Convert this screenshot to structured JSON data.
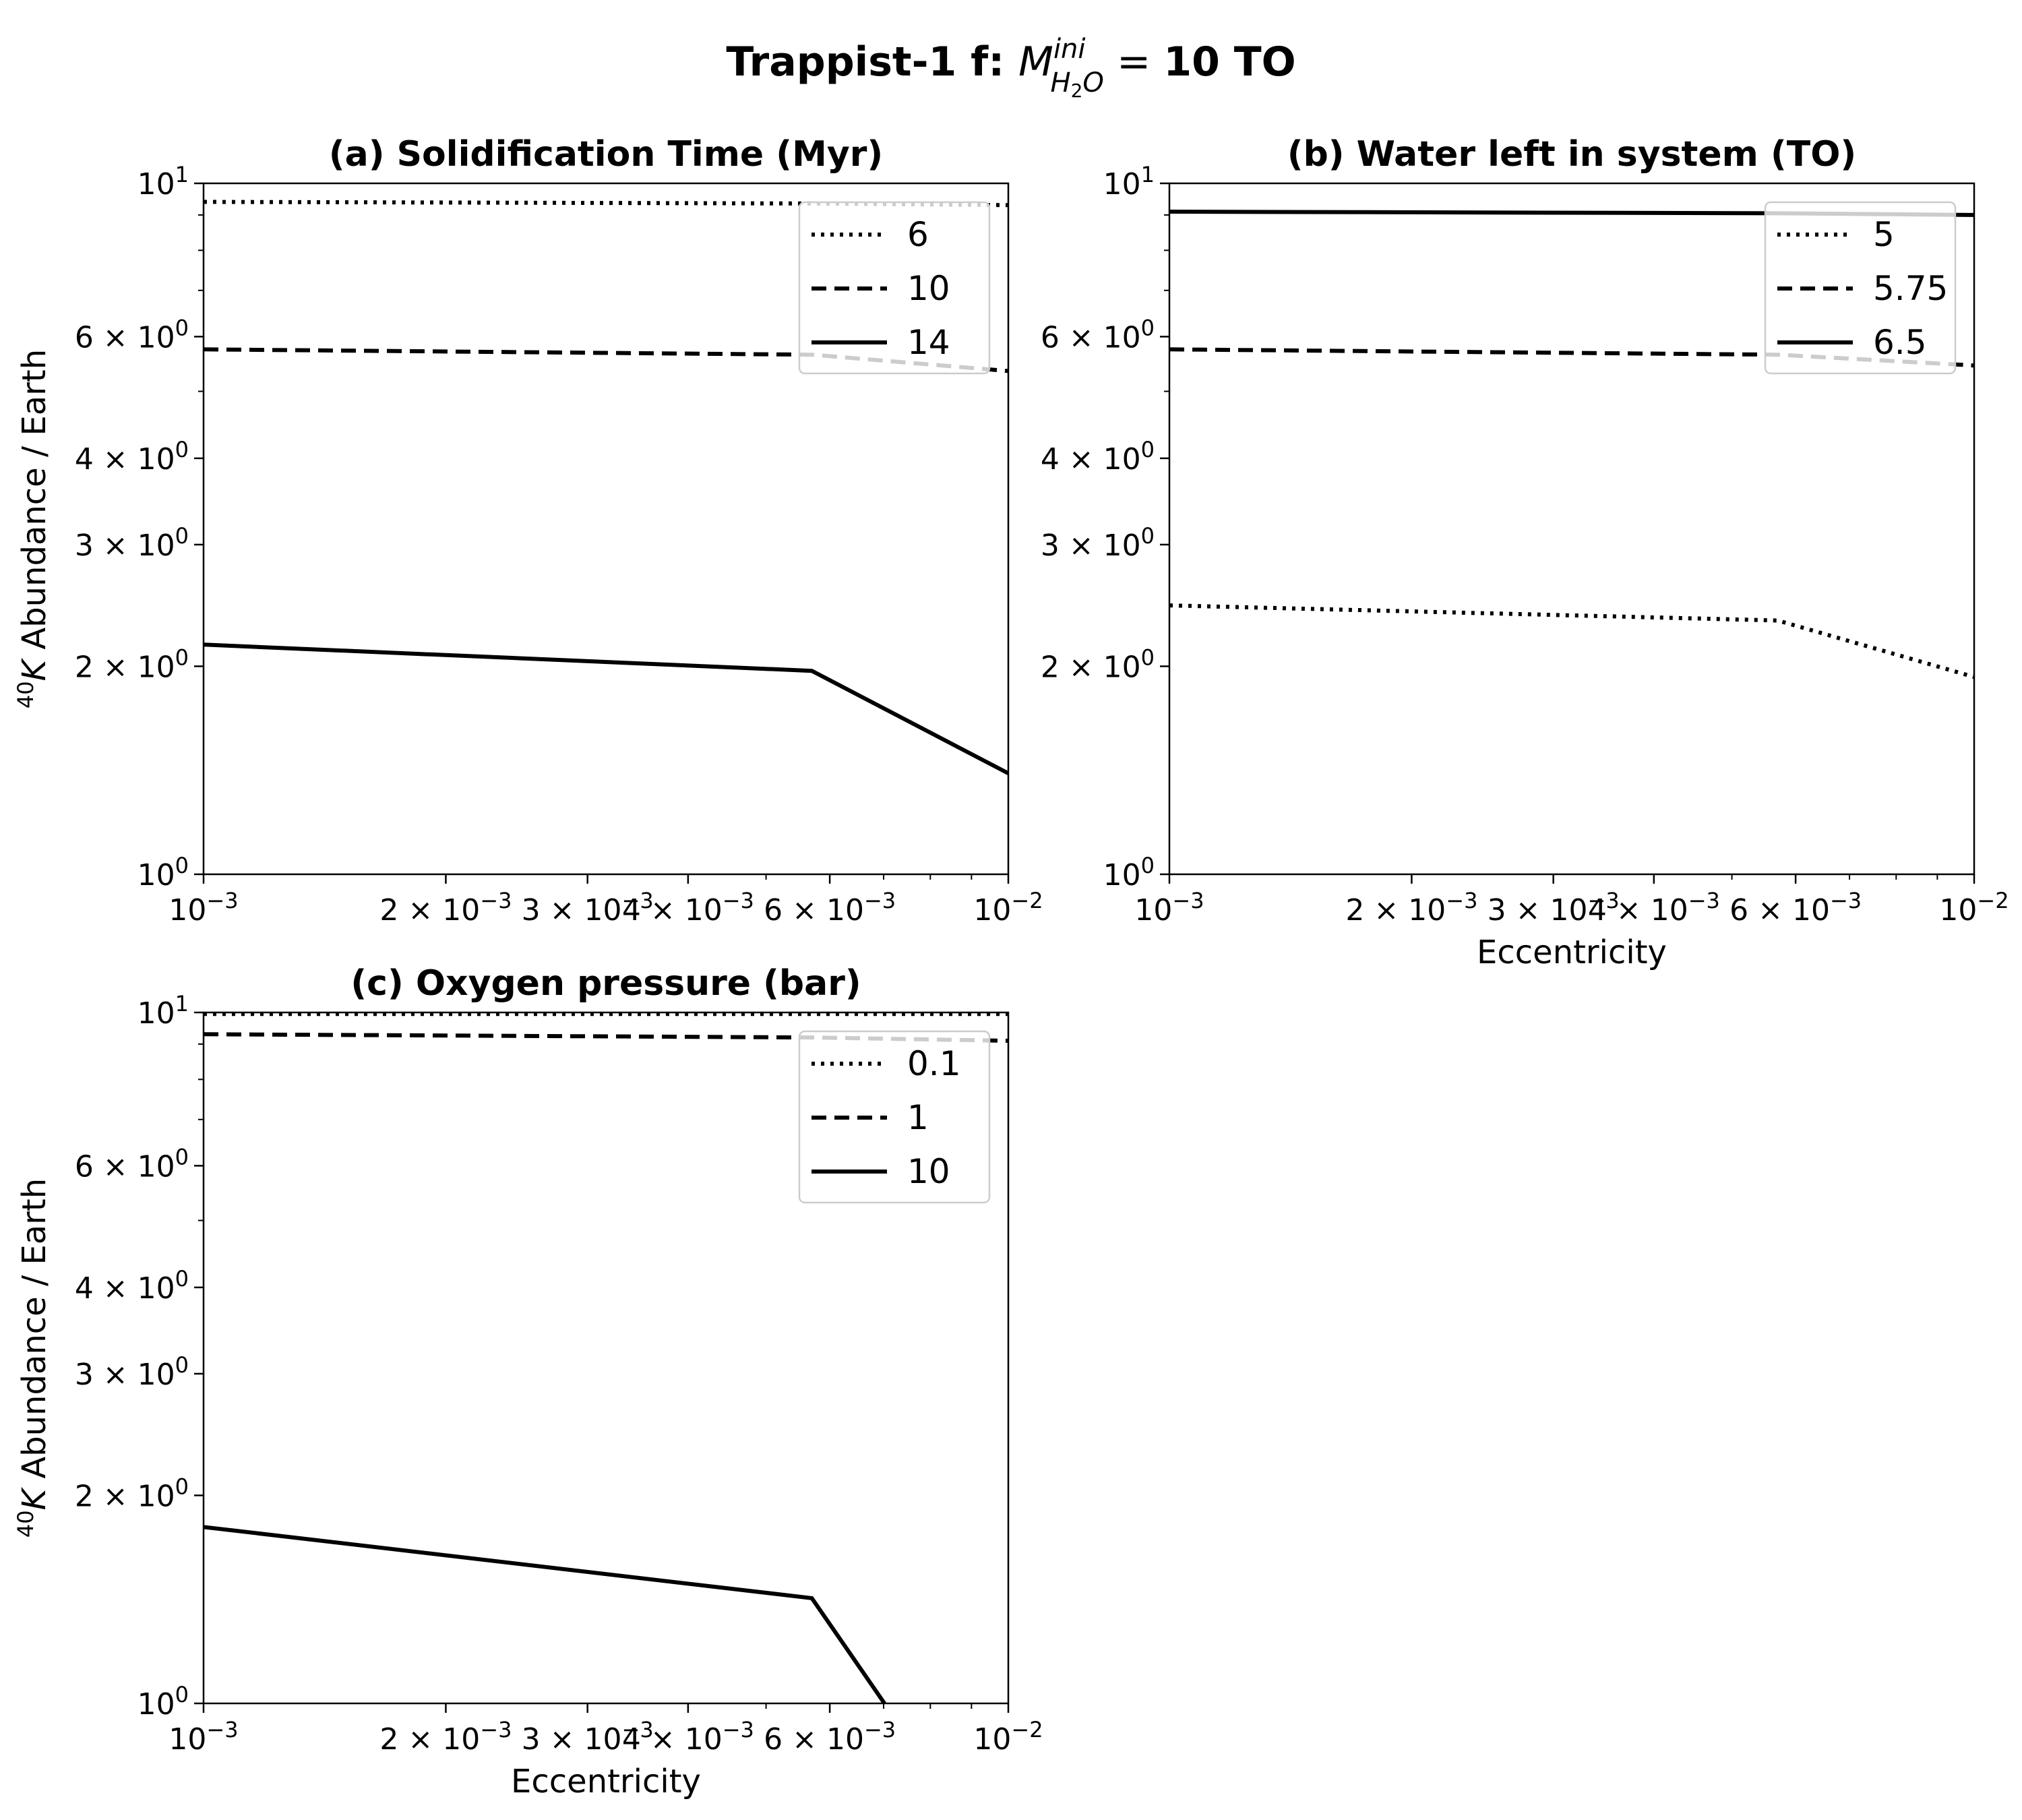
{
  "figure": {
    "title_prefix": "Trappist-1 f: ",
    "title_symbol": "M",
    "title_superscript": "ini",
    "title_subscript": "H",
    "title_subscript_digit": "2",
    "title_subscript_tail": "O",
    "title_equals": " = ",
    "title_suffix": "10 TO"
  },
  "chart_data": [
    {
      "type": "line",
      "title": "(a) Solidification Time (Myr)",
      "xlabel": "",
      "ylabel": "40K Abundance / Earth",
      "ylabel_sup": "40",
      "ylabel_rest": "K Abundance / Earth",
      "xscale": "log",
      "yscale": "log",
      "xlim": [
        0.001,
        0.01
      ],
      "ylim": [
        1,
        10
      ],
      "grid": false,
      "legend_position": "upper right",
      "x": [
        0.001,
        0.0057,
        0.01
      ],
      "series": [
        {
          "name": "6",
          "style": "dotted",
          "values": [
            9.4,
            9.35,
            9.3
          ]
        },
        {
          "name": "10",
          "style": "dashed",
          "values": [
            5.75,
            5.65,
            5.35
          ]
        },
        {
          "name": "14",
          "style": "solid",
          "values": [
            2.15,
            1.97,
            1.4
          ]
        }
      ]
    },
    {
      "type": "line",
      "title": "(b) Water left in system (TO)",
      "xlabel": "Eccentricity",
      "ylabel": "",
      "xscale": "log",
      "yscale": "log",
      "xlim": [
        0.001,
        0.01
      ],
      "ylim": [
        1,
        10
      ],
      "grid": false,
      "legend_position": "upper right",
      "x": [
        0.001,
        0.0057,
        0.01
      ],
      "series": [
        {
          "name": "5",
          "style": "dotted",
          "values": [
            2.45,
            2.33,
            1.93
          ]
        },
        {
          "name": "5.75",
          "style": "dashed",
          "values": [
            5.75,
            5.65,
            5.45
          ]
        },
        {
          "name": "6.5",
          "style": "solid",
          "values": [
            9.1,
            9.05,
            9.0
          ]
        }
      ]
    },
    {
      "type": "line",
      "title": "(c) Oxygen pressure (bar)",
      "xlabel": "Eccentricity",
      "ylabel": "40K Abundance / Earth",
      "ylabel_sup": "40",
      "ylabel_rest": "K Abundance / Earth",
      "xscale": "log",
      "yscale": "log",
      "xlim": [
        0.001,
        0.01
      ],
      "ylim": [
        1,
        10
      ],
      "grid": false,
      "legend_position": "upper right",
      "x": [
        0.001,
        0.0057,
        0.01
      ],
      "series": [
        {
          "name": "0.1",
          "style": "dotted",
          "values": [
            9.95,
            9.95,
            9.95
          ]
        },
        {
          "name": "1",
          "style": "dashed",
          "values": [
            9.3,
            9.2,
            9.1
          ]
        },
        {
          "name": "10",
          "style": "solid",
          "values": [
            1.8,
            1.42,
            0.55
          ]
        }
      ]
    }
  ],
  "axes_ticks": {
    "y_major": [
      {
        "value": 1,
        "mantissa": "10",
        "exp": "0"
      },
      {
        "value": 2,
        "mantissa": "2 × 10",
        "exp": "0"
      },
      {
        "value": 3,
        "mantissa": "3 × 10",
        "exp": "0"
      },
      {
        "value": 4,
        "mantissa": "4 × 10",
        "exp": "0"
      },
      {
        "value": 6,
        "mantissa": "6 × 10",
        "exp": "0"
      },
      {
        "value": 10,
        "mantissa": "10",
        "exp": "1"
      }
    ],
    "y_minor": [
      5,
      7,
      8,
      9
    ],
    "x_major": [
      {
        "value": 0.001,
        "mantissa": "10",
        "exp": "−3"
      },
      {
        "value": 0.002,
        "mantissa": "2 × 10",
        "exp": "−3"
      },
      {
        "value": 0.003,
        "mantissa": "3 × 10",
        "exp": "−3"
      },
      {
        "value": 0.004,
        "mantissa": "4 × 10",
        "exp": "−3"
      },
      {
        "value": 0.006,
        "mantissa": "6 × 10",
        "exp": "−3"
      },
      {
        "value": 0.01,
        "mantissa": "10",
        "exp": "−2"
      }
    ],
    "x_minor": [
      0.005,
      0.007,
      0.008,
      0.009
    ]
  },
  "colors": {
    "line": "#000000",
    "axis": "#000000",
    "legend_border": "#cccccc",
    "background": "#ffffff"
  }
}
